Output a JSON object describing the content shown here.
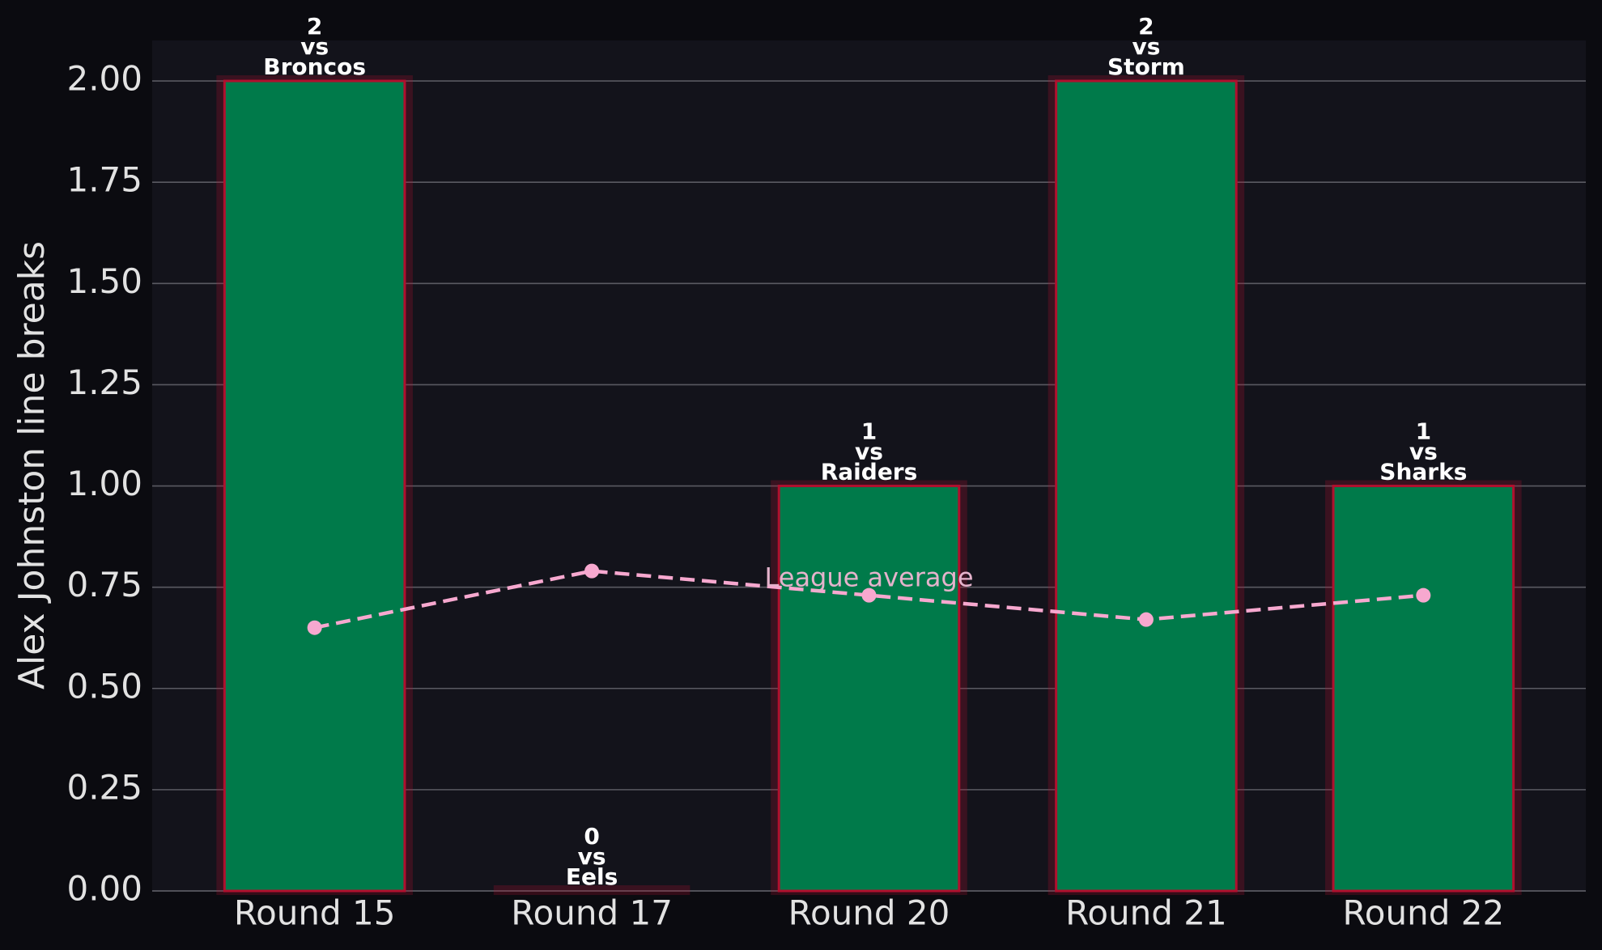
{
  "chart_data": {
    "type": "bar",
    "ylabel": "Alex Johnston line breaks",
    "categories": [
      "Round 15",
      "Round 17",
      "Round 20",
      "Round 21",
      "Round 22"
    ],
    "values": [
      2,
      0,
      1,
      2,
      1
    ],
    "color": "#007a4a",
    "edge_color": "#b0102e",
    "opponent_prefix": "vs",
    "opponents": [
      "Broncos",
      "Eels",
      "Raiders",
      "Storm",
      "Sharks"
    ],
    "overlay": {
      "type": "line",
      "name": "League average",
      "color": "#f7a8cf",
      "values": [
        0.65,
        0.79,
        0.73,
        0.67,
        0.73
      ]
    },
    "ylim": [
      0,
      2.1
    ],
    "yticks": [
      {
        "value": 0,
        "label": "0.00"
      },
      {
        "value": 0.25,
        "label": "0.25"
      },
      {
        "value": 0.5,
        "label": "0.50"
      },
      {
        "value": 0.75,
        "label": "0.75"
      },
      {
        "value": 1,
        "label": "1.00"
      },
      {
        "value": 1.25,
        "label": "1.25"
      },
      {
        "value": 1.5,
        "label": "1.50"
      },
      {
        "value": 1.75,
        "label": "1.75"
      },
      {
        "value": 2,
        "label": "2.00"
      }
    ],
    "grid": true
  }
}
